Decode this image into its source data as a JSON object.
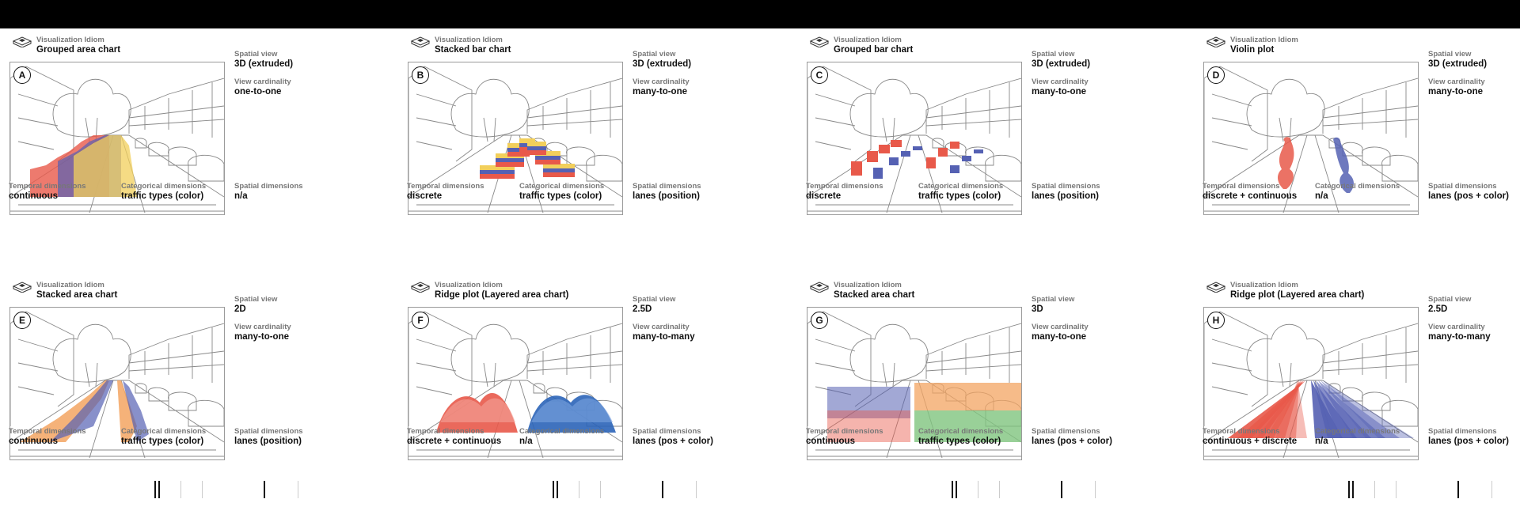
{
  "labels": {
    "idiom": "Visualization Idiom",
    "spatial_view": "Spatial view",
    "view_cardinality": "View cardinality",
    "temporal": "Temporal dimensions",
    "categorical": "Categorical dimensions",
    "spatial_dims": "Spatial dimensions"
  },
  "colors": {
    "red": "#e8594a",
    "blue": "#5561b3",
    "yellow": "#f2cf5b",
    "orange": "#f3a462",
    "green": "#7fc47e",
    "deep_blue": "#2b64b8"
  },
  "panels": [
    {
      "letter": "A",
      "idiom": "Grouped area chart",
      "spatial_view": "3D (extruded)",
      "cardinality": "one-to-one",
      "temporal": "continuous",
      "categorical": "traffic types (color)",
      "spatial": "n/a"
    },
    {
      "letter": "B",
      "idiom": "Stacked bar chart",
      "spatial_view": "3D (extruded)",
      "cardinality": "many-to-one",
      "temporal": "discrete",
      "categorical": "traffic types (color)",
      "spatial": "lanes (position)"
    },
    {
      "letter": "C",
      "idiom": "Grouped bar chart",
      "spatial_view": "3D (extruded)",
      "cardinality": "many-to-one",
      "temporal": "discrete",
      "categorical": "traffic types (color)",
      "spatial": "lanes (position)"
    },
    {
      "letter": "D",
      "idiom": "Violin plot",
      "spatial_view": "3D (extruded)",
      "cardinality": "many-to-one",
      "temporal": "discrete + continuous",
      "categorical": "n/a",
      "spatial": "lanes (pos + color)"
    },
    {
      "letter": "E",
      "idiom": "Stacked area chart",
      "spatial_view": "2D",
      "cardinality": "many-to-one",
      "temporal": "continuous",
      "categorical": "traffic types (color)",
      "spatial": "lanes (position)"
    },
    {
      "letter": "F",
      "idiom": "Ridge plot (Layered area chart)",
      "spatial_view": "2.5D",
      "cardinality": "many-to-many",
      "temporal": "discrete + continuous",
      "categorical": "n/a",
      "spatial": "lanes (pos + color)"
    },
    {
      "letter": "G",
      "idiom": "Stacked area chart",
      "spatial_view": "3D",
      "cardinality": "many-to-one",
      "temporal": "continuous",
      "categorical": "traffic types (color)",
      "spatial": "lanes (pos + color)"
    },
    {
      "letter": "H",
      "idiom": "Ridge plot (Layered area chart)",
      "spatial_view": "2.5D",
      "cardinality": "many-to-many",
      "temporal": "continuous + discrete",
      "categorical": "n/a",
      "spatial": "lanes (pos + color)"
    }
  ]
}
